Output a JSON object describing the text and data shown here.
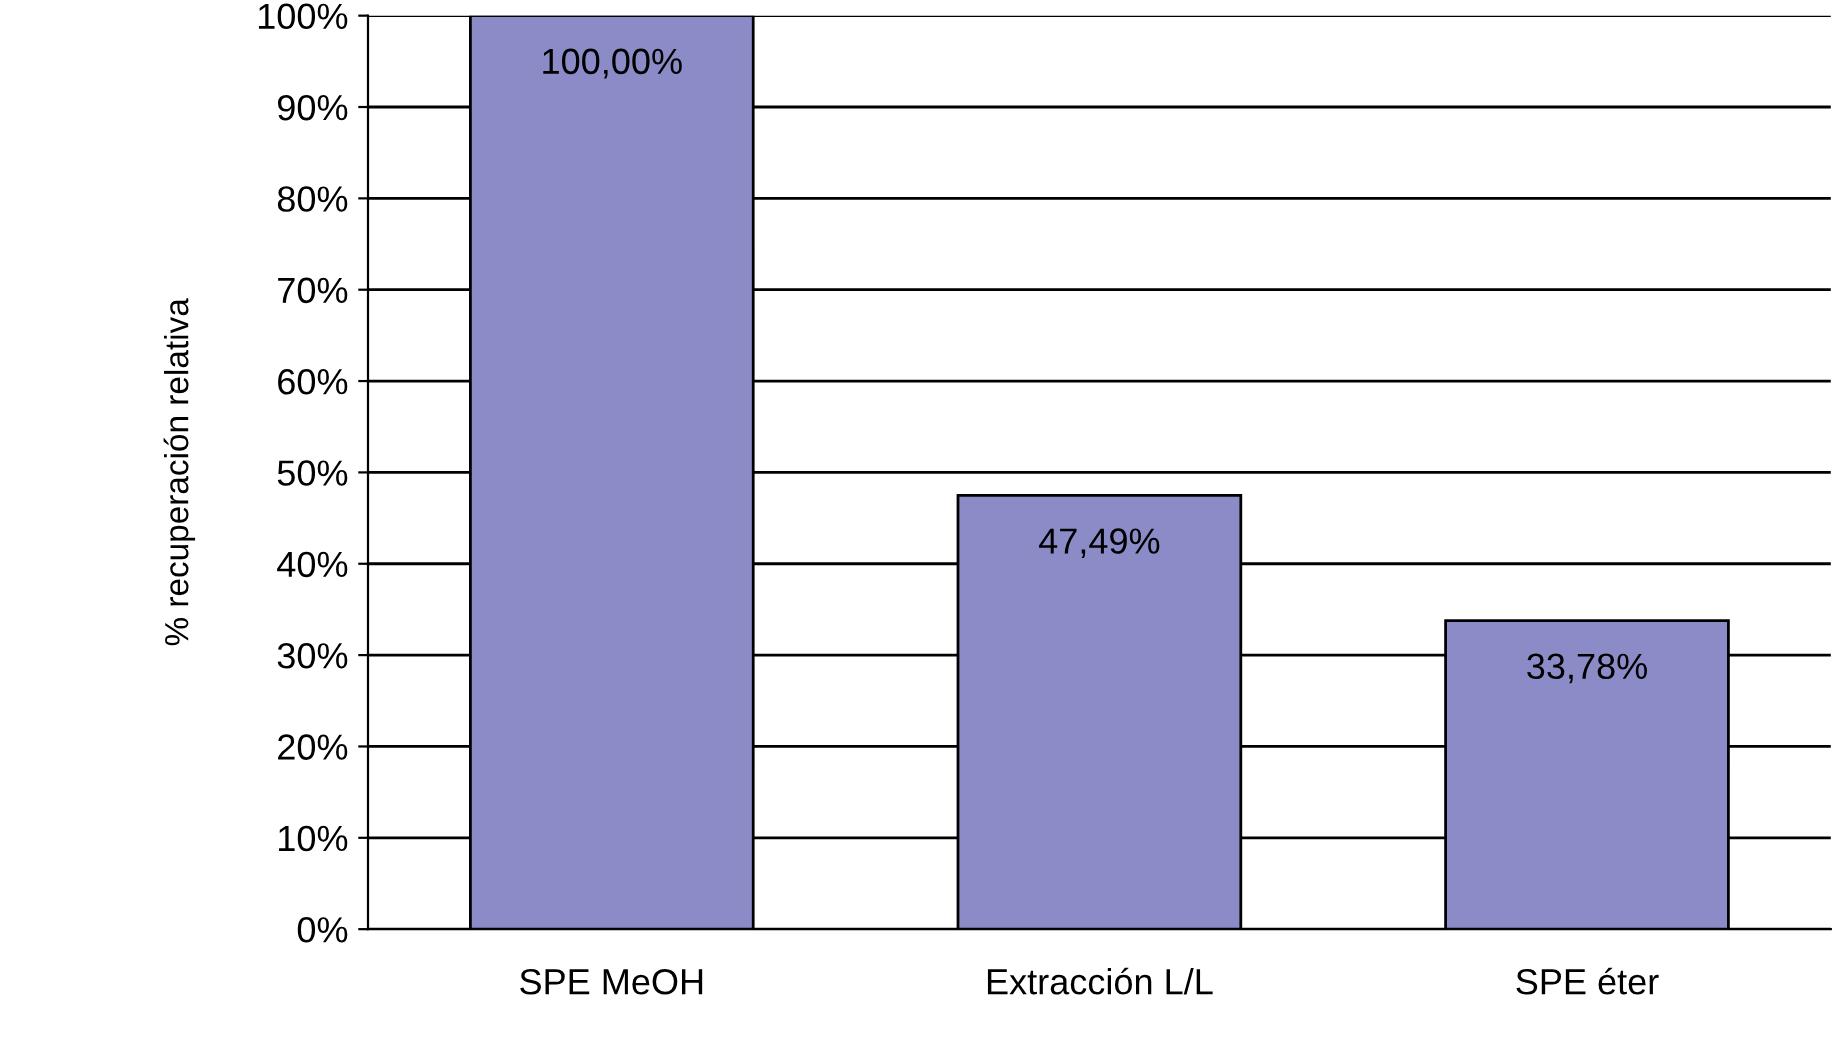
{
  "chart_data": {
    "type": "bar",
    "ylabel": "% recuperación relativa",
    "categories": [
      "SPE MeOH",
      "Extracción L/L",
      "SPE éter"
    ],
    "values": [
      100,
      47.49,
      33.78
    ],
    "value_labels": [
      "100,00%",
      "47,49%",
      "33,78%"
    ],
    "color": "#8b8bc8",
    "ylim": [
      0,
      100
    ],
    "yticks": [
      {
        "value": 0,
        "label": "0%"
      },
      {
        "value": 10,
        "label": "10%"
      },
      {
        "value": 20,
        "label": "20%"
      },
      {
        "value": 30,
        "label": "30%"
      },
      {
        "value": 40,
        "label": "40%"
      },
      {
        "value": 50,
        "label": "50%"
      },
      {
        "value": 60,
        "label": "60%"
      },
      {
        "value": 70,
        "label": "70%"
      },
      {
        "value": 80,
        "label": "80%"
      },
      {
        "value": 90,
        "label": "90%"
      },
      {
        "value": 100,
        "label": "100%"
      }
    ],
    "grid": "y"
  }
}
